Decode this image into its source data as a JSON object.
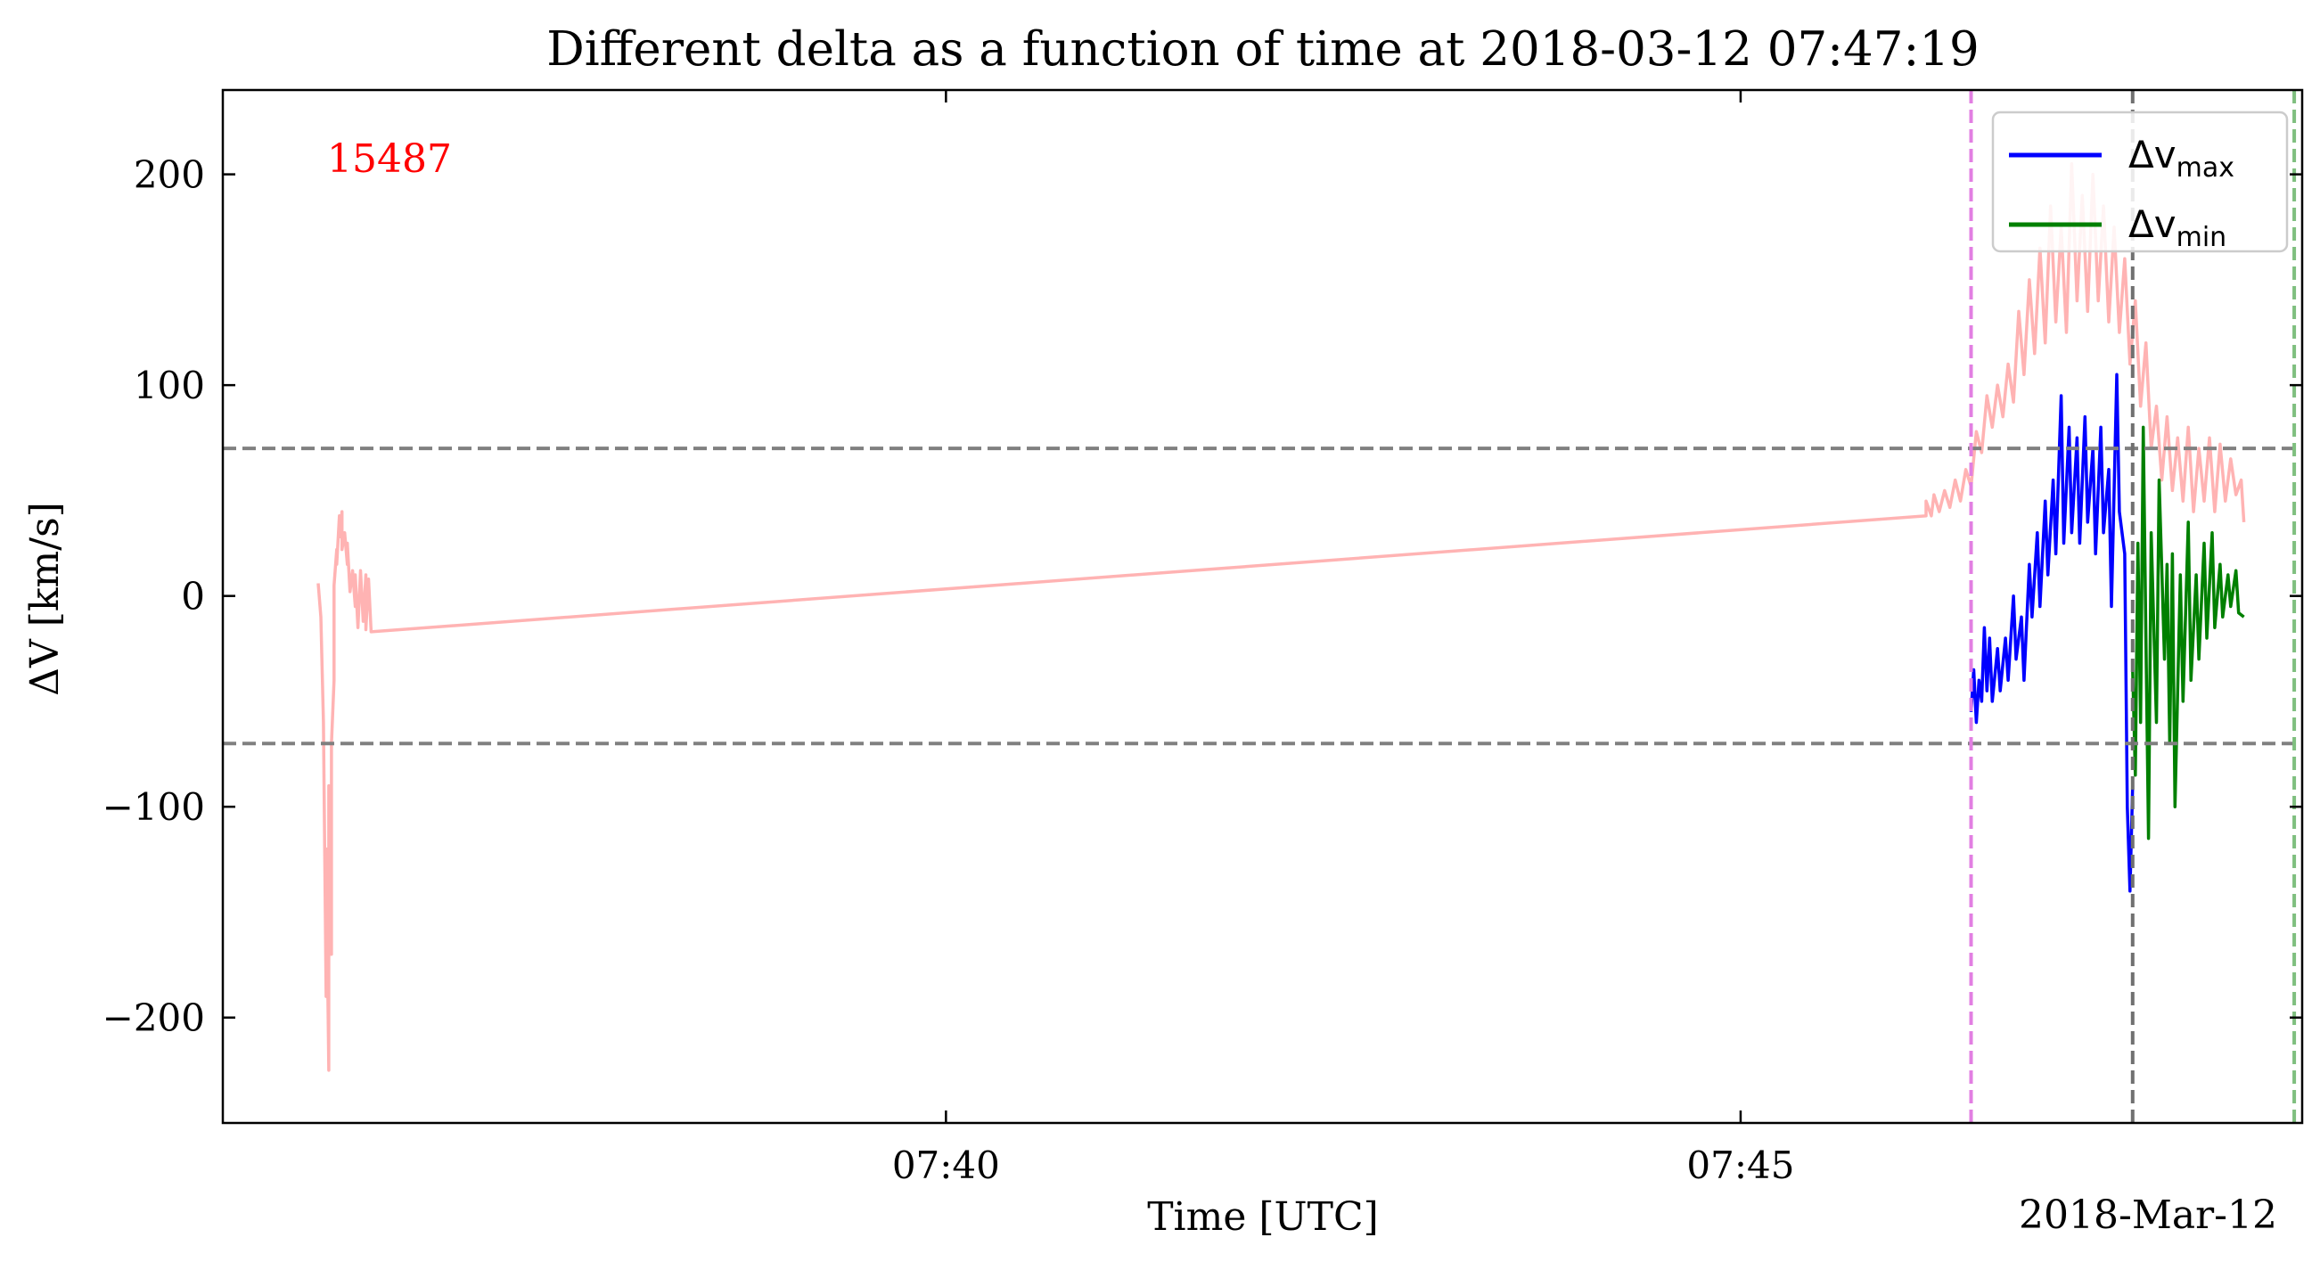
{
  "chart_data": {
    "type": "line",
    "title": "Different delta as a function of time at 2018-03-12 07:47:19",
    "xlabel": "Time [UTC]",
    "ylabel": "ΔV [km/s]",
    "date_label": "2018-Mar-12",
    "annotation": {
      "text": "15487",
      "color": "#ff0000"
    },
    "xlim": [
      "07:35:27",
      "07:48:32"
    ],
    "ylim": [
      -250,
      240
    ],
    "x_ticks": [
      "07:40",
      "07:45"
    ],
    "y_ticks": [
      -200,
      -100,
      0,
      100,
      200
    ],
    "y_tick_labels": [
      "−200",
      "−100",
      "0",
      "100",
      "200"
    ],
    "grid": false,
    "legend_position": "top-right",
    "legend": [
      {
        "label": "Δv",
        "sub": "max",
        "color": "#0000ff"
      },
      {
        "label": "Δv",
        "sub": "min",
        "color": "#008000"
      }
    ],
    "hlines": [
      {
        "y": 70,
        "color": "#808080",
        "style": "dashed"
      },
      {
        "y": -70,
        "color": "#808080",
        "style": "dashed"
      }
    ],
    "vlines": [
      {
        "x": "07:46:27",
        "color": "#e27fe2",
        "style": "dashed"
      },
      {
        "x": "07:47:28",
        "color": "#707070",
        "style": "dashed"
      },
      {
        "x": "07:48:29",
        "color": "#7fbf7f",
        "style": "dashed"
      }
    ],
    "series": [
      {
        "color": "#ffb3b3",
        "points": [
          [
            "07:36:03",
            6
          ],
          [
            "07:36:04",
            -10
          ],
          [
            "07:36:05",
            -60
          ],
          [
            "07:36:06",
            -190
          ],
          [
            "07:36:06",
            -120
          ],
          [
            "07:36:07",
            -225
          ],
          [
            "07:36:07",
            -90
          ],
          [
            "07:36:08",
            -170
          ],
          [
            "07:36:08",
            -70
          ],
          [
            "07:36:09",
            -40
          ],
          [
            "07:36:09",
            5
          ],
          [
            "07:36:10",
            22
          ],
          [
            "07:36:10",
            15
          ],
          [
            "07:36:11",
            38
          ],
          [
            "07:36:11",
            28
          ],
          [
            "07:36:12",
            40
          ],
          [
            "07:36:12",
            22
          ],
          [
            "07:36:13",
            30
          ],
          [
            "07:36:14",
            15
          ],
          [
            "07:36:14",
            25
          ],
          [
            "07:36:15",
            2
          ],
          [
            "07:36:16",
            12
          ],
          [
            "07:36:17",
            -5
          ],
          [
            "07:36:17",
            10
          ],
          [
            "07:36:18",
            -15
          ],
          [
            "07:36:19",
            12
          ],
          [
            "07:36:20",
            -12
          ],
          [
            "07:36:21",
            10
          ],
          [
            "07:36:21",
            -16
          ],
          [
            "07:36:22",
            8
          ],
          [
            "07:36:23",
            -17
          ],
          [
            "07:46:10",
            38
          ],
          [
            "07:46:10",
            45
          ],
          [
            "07:46:12",
            38
          ],
          [
            "07:46:13",
            48
          ],
          [
            "07:46:15",
            40
          ],
          [
            "07:46:17",
            50
          ],
          [
            "07:46:19",
            42
          ],
          [
            "07:46:21",
            55
          ],
          [
            "07:46:23",
            45
          ],
          [
            "07:46:25",
            60
          ],
          [
            "07:46:27",
            52
          ],
          [
            "07:46:29",
            78
          ],
          [
            "07:46:31",
            68
          ],
          [
            "07:46:33",
            95
          ],
          [
            "07:46:35",
            80
          ],
          [
            "07:46:37",
            100
          ],
          [
            "07:46:39",
            85
          ],
          [
            "07:46:41",
            110
          ],
          [
            "07:46:43",
            92
          ],
          [
            "07:46:45",
            135
          ],
          [
            "07:46:47",
            105
          ],
          [
            "07:46:49",
            150
          ],
          [
            "07:46:51",
            115
          ],
          [
            "07:46:53",
            165
          ],
          [
            "07:46:55",
            120
          ],
          [
            "07:46:57",
            185
          ],
          [
            "07:46:59",
            130
          ],
          [
            "07:47:01",
            175
          ],
          [
            "07:47:03",
            125
          ],
          [
            "07:47:05",
            205
          ],
          [
            "07:47:07",
            140
          ],
          [
            "07:47:09",
            190
          ],
          [
            "07:47:11",
            135
          ],
          [
            "07:47:13",
            200
          ],
          [
            "07:47:15",
            140
          ],
          [
            "07:47:17",
            185
          ],
          [
            "07:47:19",
            130
          ],
          [
            "07:47:21",
            175
          ],
          [
            "07:47:23",
            125
          ],
          [
            "07:47:25",
            160
          ],
          [
            "07:47:27",
            110
          ],
          [
            "07:47:29",
            140
          ],
          [
            "07:47:31",
            90
          ],
          [
            "07:47:33",
            120
          ],
          [
            "07:47:35",
            70
          ],
          [
            "07:47:37",
            90
          ],
          [
            "07:47:39",
            55
          ],
          [
            "07:47:41",
            85
          ],
          [
            "07:47:43",
            50
          ],
          [
            "07:47:45",
            75
          ],
          [
            "07:47:47",
            45
          ],
          [
            "07:47:49",
            80
          ],
          [
            "07:47:51",
            40
          ],
          [
            "07:47:53",
            70
          ],
          [
            "07:47:55",
            45
          ],
          [
            "07:47:57",
            75
          ],
          [
            "07:47:59",
            40
          ],
          [
            "07:48:01",
            72
          ],
          [
            "07:48:03",
            45
          ],
          [
            "07:48:05",
            65
          ],
          [
            "07:48:07",
            48
          ],
          [
            "07:48:09",
            55
          ],
          [
            "07:48:10",
            35
          ]
        ]
      },
      {
        "name": "Δv max",
        "color": "#0000ff",
        "points": [
          [
            "07:46:27",
            -55
          ],
          [
            "07:46:28",
            -35
          ],
          [
            "07:46:29",
            -60
          ],
          [
            "07:46:30",
            -40
          ],
          [
            "07:46:31",
            -50
          ],
          [
            "07:46:32",
            -15
          ],
          [
            "07:46:33",
            -45
          ],
          [
            "07:46:34",
            -20
          ],
          [
            "07:46:35",
            -50
          ],
          [
            "07:46:37",
            -25
          ],
          [
            "07:46:38",
            -45
          ],
          [
            "07:46:40",
            -20
          ],
          [
            "07:46:41",
            -40
          ],
          [
            "07:46:43",
            0
          ],
          [
            "07:46:44",
            -30
          ],
          [
            "07:46:46",
            -10
          ],
          [
            "07:46:47",
            -40
          ],
          [
            "07:46:49",
            15
          ],
          [
            "07:46:50",
            -10
          ],
          [
            "07:46:52",
            30
          ],
          [
            "07:46:53",
            -5
          ],
          [
            "07:46:55",
            45
          ],
          [
            "07:46:56",
            10
          ],
          [
            "07:46:58",
            55
          ],
          [
            "07:46:59",
            20
          ],
          [
            "07:47:01",
            95
          ],
          [
            "07:47:02",
            25
          ],
          [
            "07:47:04",
            80
          ],
          [
            "07:47:05",
            30
          ],
          [
            "07:47:07",
            75
          ],
          [
            "07:47:08",
            25
          ],
          [
            "07:47:10",
            85
          ],
          [
            "07:47:11",
            35
          ],
          [
            "07:47:13",
            70
          ],
          [
            "07:47:14",
            20
          ],
          [
            "07:47:16",
            80
          ],
          [
            "07:47:17",
            30
          ],
          [
            "07:47:19",
            60
          ],
          [
            "07:47:20",
            -5
          ],
          [
            "07:47:22",
            105
          ],
          [
            "07:47:23",
            40
          ],
          [
            "07:47:25",
            20
          ],
          [
            "07:47:26",
            -100
          ],
          [
            "07:47:27",
            -140
          ],
          [
            "07:47:28",
            -90
          ]
        ]
      },
      {
        "name": "Δv min",
        "color": "#008000",
        "points": [
          [
            "07:47:28",
            -35
          ],
          [
            "07:47:29",
            -85
          ],
          [
            "07:47:30",
            25
          ],
          [
            "07:47:31",
            -60
          ],
          [
            "07:47:32",
            80
          ],
          [
            "07:47:33",
            -20
          ],
          [
            "07:47:34",
            -115
          ],
          [
            "07:47:35",
            30
          ],
          [
            "07:47:37",
            -60
          ],
          [
            "07:47:38",
            55
          ],
          [
            "07:47:40",
            -30
          ],
          [
            "07:47:41",
            15
          ],
          [
            "07:47:42",
            -70
          ],
          [
            "07:47:43",
            20
          ],
          [
            "07:47:44",
            -100
          ],
          [
            "07:47:46",
            10
          ],
          [
            "07:47:47",
            -50
          ],
          [
            "07:47:49",
            35
          ],
          [
            "07:47:50",
            -40
          ],
          [
            "07:47:52",
            10
          ],
          [
            "07:47:53",
            -30
          ],
          [
            "07:47:55",
            25
          ],
          [
            "07:47:56",
            -20
          ],
          [
            "07:47:58",
            30
          ],
          [
            "07:47:59",
            -15
          ],
          [
            "07:48:01",
            15
          ],
          [
            "07:48:02",
            -10
          ],
          [
            "07:48:04",
            10
          ],
          [
            "07:48:05",
            -5
          ],
          [
            "07:48:07",
            12
          ],
          [
            "07:48:08",
            -8
          ],
          [
            "07:48:10",
            -10
          ]
        ]
      }
    ]
  }
}
